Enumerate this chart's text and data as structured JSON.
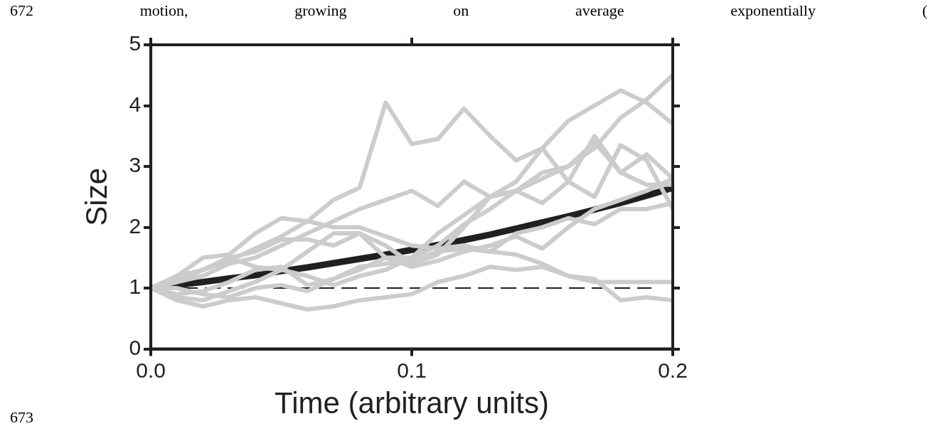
{
  "chart_data": {
    "type": "line",
    "xlabel": "Time (arbitrary units)",
    "ylabel": "Size",
    "annotations": [
      "672 motion, growing on average exponentially (",
      "673"
    ],
    "x": [
      0,
      0.01,
      0.02,
      0.03,
      0.04,
      0.05,
      0.06,
      0.07,
      0.08,
      0.09,
      0.1,
      0.11,
      0.12,
      0.13,
      0.14,
      0.15,
      0.16,
      0.17,
      0.18,
      0.19,
      0.2
    ],
    "series": [
      {
        "color": "#cbcccd",
        "values": [
          1,
          1.15,
          1.3,
          1.45,
          1.65,
          1.85,
          2.1,
          2.45,
          2.65,
          4.05,
          3.37,
          3.45,
          3.95,
          3.5,
          3.1,
          3.3,
          2.75,
          3.5,
          2.9,
          3.2,
          2.8
        ]
      },
      {
        "color": "#cbcccd",
        "values": [
          1,
          1.1,
          1.2,
          1.4,
          1.5,
          1.7,
          1.9,
          2.1,
          2.3,
          2.45,
          2.6,
          2.35,
          2.75,
          2.5,
          2.6,
          2.8,
          3.0,
          3.3,
          3.8,
          4.1,
          4.5
        ]
      },
      {
        "color": "#cbcccd",
        "values": [
          1,
          1.2,
          1.3,
          1.5,
          1.6,
          1.8,
          1.8,
          1.7,
          1.9,
          1.5,
          1.5,
          1.9,
          2.2,
          2.5,
          2.75,
          3.3,
          3.75,
          4.0,
          4.25,
          4.05,
          3.7
        ]
      },
      {
        "color": "#cbcccd",
        "values": [
          1,
          1.2,
          1.5,
          1.55,
          1.9,
          2.15,
          2.1,
          2.0,
          2.0,
          1.85,
          1.7,
          1.65,
          1.7,
          1.6,
          1.55,
          1.4,
          1.2,
          1.15,
          0.8,
          0.85,
          0.8
        ]
      },
      {
        "color": "#cbcccd",
        "values": [
          1,
          0.8,
          0.7,
          0.8,
          0.85,
          0.75,
          0.65,
          0.7,
          0.8,
          0.85,
          0.9,
          1.1,
          1.2,
          1.35,
          1.3,
          1.35,
          1.2,
          1.1,
          1.1,
          1.1,
          1.1
        ]
      },
      {
        "color": "#cbcccd",
        "values": [
          1,
          0.85,
          0.8,
          0.95,
          1.1,
          1.3,
          1.6,
          1.9,
          1.9,
          1.7,
          1.4,
          1.55,
          2.0,
          2.5,
          2.6,
          2.9,
          3.0,
          3.4,
          2.9,
          2.7,
          2.7
        ]
      },
      {
        "color": "#cbcccd",
        "values": [
          1,
          1.1,
          1.3,
          1.5,
          1.35,
          1.3,
          1.2,
          1.05,
          1.2,
          1.3,
          1.5,
          1.7,
          2.05,
          2.3,
          2.6,
          2.4,
          2.75,
          2.5,
          3.35,
          3.1,
          2.3
        ]
      },
      {
        "color": "#cbcccd",
        "values": [
          1,
          0.9,
          0.95,
          1.1,
          1.3,
          1.35,
          1.05,
          1.15,
          1.3,
          1.5,
          1.35,
          1.45,
          1.6,
          1.7,
          1.85,
          1.65,
          2.0,
          2.3,
          2.45,
          2.6,
          2.8
        ]
      },
      {
        "color": "#cbcccd",
        "values": [
          1,
          1.0,
          0.9,
          0.85,
          1.0,
          1.05,
          0.95,
          1.15,
          1.35,
          1.4,
          1.45,
          1.6,
          1.65,
          1.6,
          1.9,
          2.0,
          2.15,
          2.05,
          2.3,
          2.3,
          2.4
        ]
      },
      {
        "color": "#231f20",
        "values": [
          1,
          1.05,
          1.1,
          1.16,
          1.21,
          1.28,
          1.34,
          1.41,
          1.48,
          1.55,
          1.63,
          1.71,
          1.79,
          1.88,
          1.98,
          2.08,
          2.18,
          2.29,
          2.4,
          2.52,
          2.65
        ]
      }
    ],
    "ref_lines": [
      {
        "axis": "y",
        "value": 1,
        "color": "#231f20",
        "line_style": "dashed"
      }
    ],
    "xlim": [
      0,
      0.2
    ],
    "xticks": [
      {
        "value": 0,
        "label": "0.0"
      },
      {
        "value": 0.1,
        "label": "0.1"
      },
      {
        "value": 0.2,
        "label": "0.2"
      }
    ],
    "ylim": [
      0,
      5
    ],
    "yticks": [
      0,
      1,
      2,
      3,
      4,
      5
    ],
    "grid": false,
    "legend": false,
    "marker": "none",
    "line_style": "solid"
  }
}
